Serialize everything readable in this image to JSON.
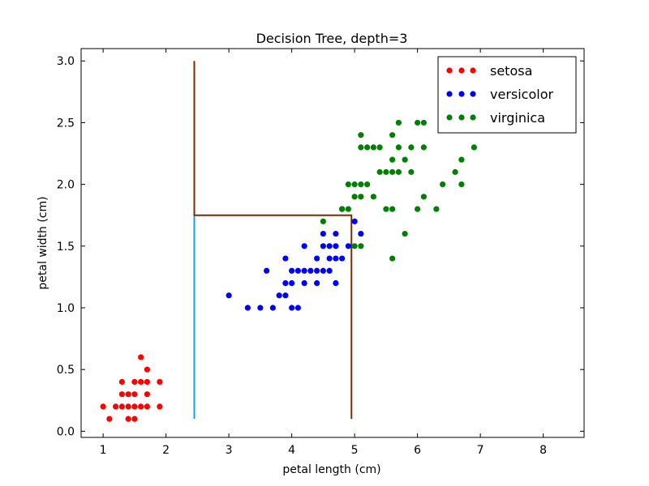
{
  "chart_data": {
    "type": "scatter",
    "title": "Decision Tree, depth=3",
    "xlabel": "petal length (cm)",
    "ylabel": "petal width (cm)",
    "xlim": [
      0.65,
      8.65
    ],
    "ylim": [
      -0.05,
      3.1
    ],
    "x_ticks": [
      "1",
      "2",
      "3",
      "4",
      "5",
      "6",
      "7",
      "8"
    ],
    "y_ticks": [
      "0.0",
      "0.5",
      "1.0",
      "1.5",
      "2.0",
      "2.5",
      "3.0"
    ],
    "x_tick_values": [
      1,
      2,
      3,
      4,
      5,
      6,
      7,
      8
    ],
    "y_tick_values": [
      0.0,
      0.5,
      1.0,
      1.5,
      2.0,
      2.5,
      3.0
    ],
    "legend_position": "top-right",
    "series": [
      {
        "name": "setosa",
        "color": "#ff0000",
        "points": [
          [
            1.0,
            0.2
          ],
          [
            1.1,
            0.1
          ],
          [
            1.2,
            0.2
          ],
          [
            1.3,
            0.2
          ],
          [
            1.3,
            0.3
          ],
          [
            1.3,
            0.4
          ],
          [
            1.4,
            0.2
          ],
          [
            1.4,
            0.3
          ],
          [
            1.4,
            0.1
          ],
          [
            1.5,
            0.2
          ],
          [
            1.5,
            0.4
          ],
          [
            1.5,
            0.1
          ],
          [
            1.5,
            0.3
          ],
          [
            1.6,
            0.2
          ],
          [
            1.6,
            0.4
          ],
          [
            1.6,
            0.6
          ],
          [
            1.7,
            0.2
          ],
          [
            1.7,
            0.3
          ],
          [
            1.7,
            0.4
          ],
          [
            1.7,
            0.5
          ],
          [
            1.9,
            0.2
          ],
          [
            1.9,
            0.4
          ]
        ]
      },
      {
        "name": "versicolor",
        "color": "#0000ff",
        "points": [
          [
            3.0,
            1.1
          ],
          [
            3.3,
            1.0
          ],
          [
            3.5,
            1.0
          ],
          [
            3.6,
            1.3
          ],
          [
            3.7,
            1.0
          ],
          [
            3.8,
            1.1
          ],
          [
            3.9,
            1.1
          ],
          [
            3.9,
            1.2
          ],
          [
            3.9,
            1.4
          ],
          [
            4.0,
            1.0
          ],
          [
            4.0,
            1.2
          ],
          [
            4.0,
            1.3
          ],
          [
            4.1,
            1.0
          ],
          [
            4.1,
            1.3
          ],
          [
            4.2,
            1.2
          ],
          [
            4.2,
            1.3
          ],
          [
            4.2,
            1.5
          ],
          [
            4.3,
            1.3
          ],
          [
            4.4,
            1.2
          ],
          [
            4.4,
            1.3
          ],
          [
            4.4,
            1.4
          ],
          [
            4.5,
            1.3
          ],
          [
            4.5,
            1.5
          ],
          [
            4.5,
            1.6
          ],
          [
            4.6,
            1.3
          ],
          [
            4.6,
            1.4
          ],
          [
            4.6,
            1.5
          ],
          [
            4.7,
            1.2
          ],
          [
            4.7,
            1.4
          ],
          [
            4.7,
            1.5
          ],
          [
            4.7,
            1.6
          ],
          [
            4.8,
            1.4
          ],
          [
            4.8,
            1.8
          ],
          [
            4.9,
            1.5
          ],
          [
            5.0,
            1.7
          ],
          [
            5.1,
            1.6
          ]
        ]
      },
      {
        "name": "virginica",
        "color": "#008000",
        "points": [
          [
            4.5,
            1.7
          ],
          [
            4.8,
            1.8
          ],
          [
            4.9,
            1.8
          ],
          [
            4.9,
            2.0
          ],
          [
            5.0,
            1.5
          ],
          [
            5.0,
            2.0
          ],
          [
            5.0,
            1.9
          ],
          [
            5.1,
            1.5
          ],
          [
            5.1,
            1.9
          ],
          [
            5.1,
            2.0
          ],
          [
            5.1,
            2.3
          ],
          [
            5.1,
            2.4
          ],
          [
            5.2,
            2.0
          ],
          [
            5.2,
            2.3
          ],
          [
            5.3,
            1.9
          ],
          [
            5.3,
            2.3
          ],
          [
            5.4,
            2.1
          ],
          [
            5.4,
            2.3
          ],
          [
            5.5,
            1.8
          ],
          [
            5.5,
            2.1
          ],
          [
            5.6,
            1.4
          ],
          [
            5.6,
            1.8
          ],
          [
            5.6,
            2.1
          ],
          [
            5.6,
            2.2
          ],
          [
            5.6,
            2.4
          ],
          [
            5.7,
            2.1
          ],
          [
            5.7,
            2.3
          ],
          [
            5.7,
            2.5
          ],
          [
            5.8,
            1.6
          ],
          [
            5.8,
            2.2
          ],
          [
            5.9,
            2.1
          ],
          [
            5.9,
            2.3
          ],
          [
            6.0,
            1.8
          ],
          [
            6.0,
            2.5
          ],
          [
            6.1,
            1.9
          ],
          [
            6.1,
            2.3
          ],
          [
            6.1,
            2.5
          ],
          [
            6.3,
            1.8
          ],
          [
            6.4,
            2.0
          ],
          [
            6.6,
            2.1
          ],
          [
            6.7,
            2.0
          ],
          [
            6.7,
            2.2
          ],
          [
            6.9,
            2.3
          ]
        ]
      }
    ],
    "decision_boundaries": [
      {
        "color": "#1e9fe0",
        "points": [
          [
            2.45,
            0.1
          ],
          [
            2.45,
            1.75
          ]
        ]
      },
      {
        "color": "#7a2e00",
        "points": [
          [
            2.45,
            3.0
          ],
          [
            2.45,
            1.75
          ],
          [
            4.95,
            1.75
          ],
          [
            4.95,
            0.1
          ]
        ]
      }
    ]
  }
}
